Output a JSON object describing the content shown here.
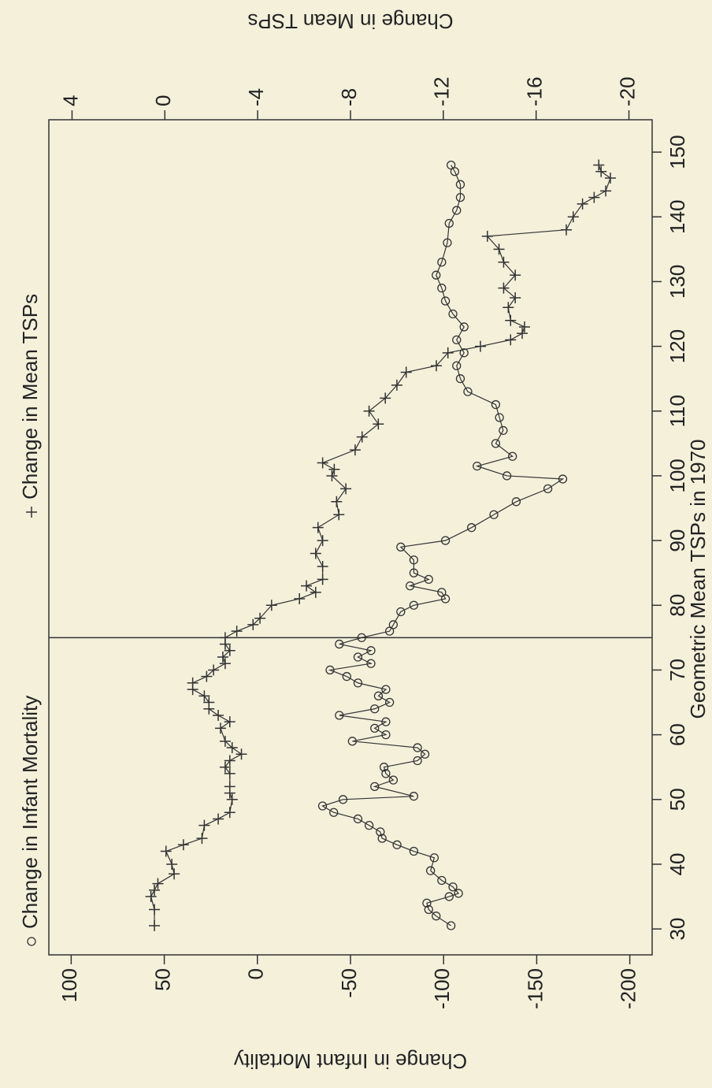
{
  "chart_data": {
    "type": "line",
    "xlabel": "Geometric Mean TSPs in 1970",
    "ylabel": "Change in Infant Mortality",
    "y2label": "Change in Mean TSPs",
    "xlim": [
      26,
      155
    ],
    "xticks": [
      30,
      40,
      50,
      60,
      70,
      80,
      90,
      100,
      110,
      120,
      130,
      140,
      150
    ],
    "ylim": [
      -212,
      112
    ],
    "yticks": [
      -200,
      -150,
      -100,
      -50,
      0,
      50,
      100
    ],
    "y2lim": [
      -21,
      5
    ],
    "y2ticks": [
      -20,
      -16,
      -12,
      -8,
      -4,
      0,
      4
    ],
    "vline": 75,
    "series": [
      {
        "name": "Change in Infant Mortality",
        "color": "#333333",
        "marker": "circle",
        "x": [
          30.5,
          32,
          33,
          34,
          35,
          35.5,
          36.5,
          37.5,
          39,
          41,
          42,
          43,
          44,
          45,
          46,
          47,
          48,
          49,
          50,
          50.5,
          52,
          53,
          54,
          55,
          56,
          57,
          58,
          59,
          60,
          61,
          62,
          63,
          64,
          65,
          66,
          67,
          68,
          69,
          70,
          71,
          72,
          73,
          74,
          75,
          76,
          77,
          79,
          80,
          81,
          82,
          83,
          84,
          85,
          87,
          89,
          90,
          92,
          94,
          96,
          98,
          99.5,
          100,
          101.5,
          103,
          105,
          107,
          109,
          111,
          113,
          115,
          117,
          119,
          121,
          123,
          125,
          127,
          129,
          131,
          133,
          136,
          139,
          141,
          143,
          145,
          147,
          148
        ],
        "values": [
          -104,
          -96,
          -92,
          -91,
          -103,
          -108,
          -105,
          -99,
          -93,
          -95,
          -84,
          -75,
          -67,
          -66,
          -60,
          -54,
          -41,
          -35,
          -46,
          -84,
          -63,
          -73,
          -69,
          -68,
          -86,
          -90,
          -86,
          -51,
          -69,
          -63,
          -69,
          -44,
          -63,
          -71,
          -65,
          -69,
          -54,
          -48,
          -39,
          -61,
          -54,
          -61,
          -44,
          -56,
          -71,
          -73,
          -77,
          -84,
          -101,
          -99,
          -82,
          -92,
          -84,
          -84,
          -77,
          -101,
          -115,
          -127,
          -139,
          -156,
          -164,
          -134,
          -118,
          -137,
          -128,
          -132,
          -130,
          -128,
          -113,
          -109,
          -107,
          -111,
          -107,
          -111,
          -105,
          -101,
          -99,
          -96,
          -99,
          -102,
          -103,
          -107,
          -109,
          -109,
          -106,
          -104
        ]
      },
      {
        "name": "Change in Mean TSPs",
        "color": "#333333",
        "marker": "plus",
        "axis": "y2",
        "x": [
          30.5,
          33,
          35,
          36,
          37,
          38.5,
          40,
          42,
          43,
          44,
          46,
          47,
          48,
          50,
          51,
          52,
          54,
          55,
          56,
          57,
          58,
          59,
          61,
          62,
          63,
          64,
          65,
          66,
          67,
          68,
          69,
          70,
          71,
          72,
          73,
          74,
          75,
          76,
          77,
          78,
          80,
          81,
          82,
          83,
          84,
          86,
          88,
          90,
          92,
          94,
          96,
          98,
          100,
          101,
          102,
          104,
          106,
          108,
          110,
          112,
          114,
          116,
          117,
          119,
          120,
          121,
          122,
          123,
          124,
          126,
          127.5,
          129,
          131,
          133,
          135,
          137,
          138,
          140,
          142,
          143,
          144,
          146,
          147,
          148
        ],
        "values": [
          0.45,
          0.45,
          0.6,
          0.45,
          0.3,
          -0.4,
          -0.3,
          -0.05,
          -0.8,
          -1.6,
          -1.7,
          -2.3,
          -2.8,
          -2.9,
          -2.8,
          -2.8,
          -2.8,
          -2.6,
          -2.8,
          -3.3,
          -2.9,
          -2.6,
          -2.4,
          -2.8,
          -2.3,
          -1.9,
          -1.9,
          -1.7,
          -1.2,
          -1.2,
          -1.8,
          -2.1,
          -2.6,
          -2.5,
          -2.8,
          -2.6,
          -2.6,
          -3.1,
          -3.8,
          -4.1,
          -4.6,
          -5.8,
          -6.5,
          -6.1,
          -6.8,
          -6.8,
          -6.5,
          -6.8,
          -6.6,
          -7.5,
          -7.4,
          -7.8,
          -7.2,
          -7.3,
          -6.8,
          -8.2,
          -8.5,
          -9.2,
          -8.8,
          -9.5,
          -10.0,
          -10.4,
          -11.7,
          -12.2,
          -13.6,
          -14.9,
          -15.4,
          -15.5,
          -14.9,
          -14.8,
          -15.1,
          -14.6,
          -15.1,
          -14.6,
          -14.4,
          -13.9,
          -17.3,
          -17.6,
          -18.0,
          -18.5,
          -19.0,
          -19.2,
          -18.8,
          -18.7
        ]
      }
    ]
  }
}
